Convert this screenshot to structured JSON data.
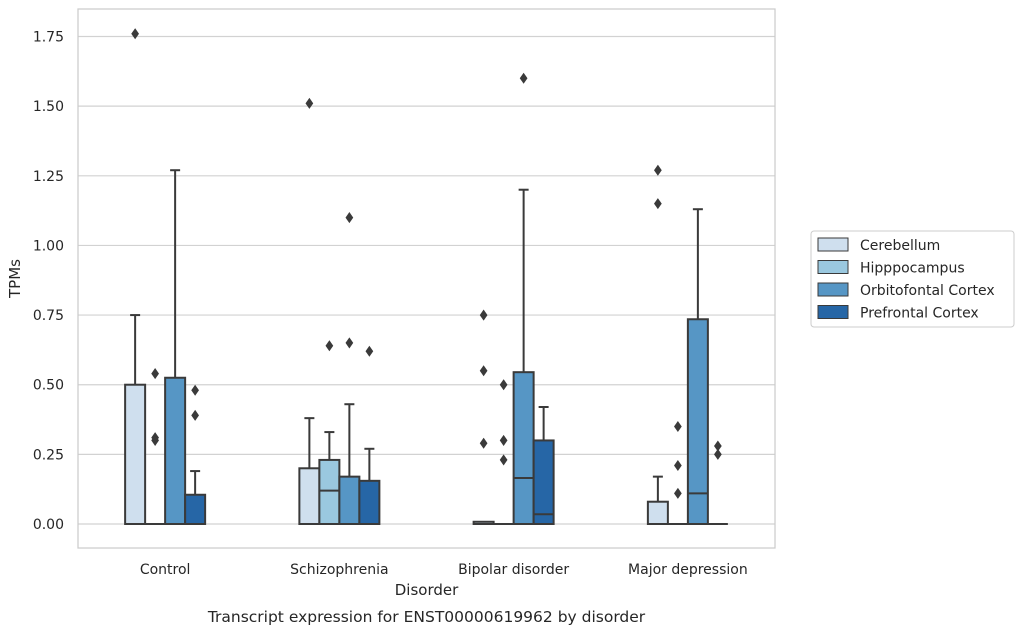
{
  "chart_data": {
    "type": "box",
    "xlabel": "Disorder",
    "ylabel": "TPMs",
    "caption": "Transcript expression for ENST00000619962 by disorder",
    "ylim": [
      -0.085,
      1.85
    ],
    "yticks": [
      "0.00",
      "0.25",
      "0.50",
      "0.75",
      "1.00",
      "1.25",
      "1.50",
      "1.75"
    ],
    "grid": "horizontal",
    "legend_position": "right",
    "categories": [
      "Control",
      "Schizophrenia",
      "Bipolar disorder",
      "Major depression"
    ],
    "series": [
      {
        "name": "Cerebellum",
        "color": "#cfdfee",
        "boxes": [
          {
            "min": 0,
            "q1": 0,
            "median": 0,
            "q3": 0.5,
            "max": 0.75,
            "outliers": [
              1.76
            ]
          },
          {
            "min": 0,
            "q1": 0,
            "median": 0,
            "q3": 0.2,
            "max": 0.38,
            "outliers": [
              1.51
            ]
          },
          {
            "min": 0,
            "q1": 0,
            "median": 0,
            "q3": 0.008,
            "max": 0.008,
            "outliers": [
              0.75,
              0.55,
              0.29
            ]
          },
          {
            "min": 0,
            "q1": 0,
            "median": 0,
            "q3": 0.08,
            "max": 0.17,
            "outliers": [
              1.27,
              1.15
            ]
          }
        ]
      },
      {
        "name": "Hipppocampus",
        "color": "#9ac8df",
        "boxes": [
          {
            "min": 0,
            "q1": 0,
            "median": 0,
            "q3": 0,
            "max": 0,
            "outliers": [
              0.54,
              0.31,
              0.3
            ]
          },
          {
            "min": 0,
            "q1": 0,
            "median": 0.12,
            "q3": 0.23,
            "max": 0.33,
            "outliers": [
              0.64
            ]
          },
          {
            "min": 0,
            "q1": 0,
            "median": 0,
            "q3": 0,
            "max": 0,
            "outliers": [
              0.5,
              0.3,
              0.23
            ]
          },
          {
            "min": 0,
            "q1": 0,
            "median": 0,
            "q3": 0,
            "max": 0,
            "outliers": [
              0.35,
              0.21,
              0.11
            ]
          }
        ]
      },
      {
        "name": "Orbitofontal Cortex",
        "color": "#5696c5",
        "boxes": [
          {
            "min": 0,
            "q1": 0,
            "median": 0,
            "q3": 0.525,
            "max": 1.27,
            "outliers": []
          },
          {
            "min": 0,
            "q1": 0,
            "median": 0,
            "q3": 0.17,
            "max": 0.43,
            "outliers": [
              1.1,
              0.65
            ]
          },
          {
            "min": 0,
            "q1": 0,
            "median": 0.165,
            "q3": 0.545,
            "max": 1.2,
            "outliers": [
              1.6
            ]
          },
          {
            "min": 0,
            "q1": 0,
            "median": 0.11,
            "q3": 0.735,
            "max": 1.13,
            "outliers": []
          }
        ]
      },
      {
        "name": "Prefrontal Cortex",
        "color": "#2666a6",
        "boxes": [
          {
            "min": 0,
            "q1": 0,
            "median": 0,
            "q3": 0.105,
            "max": 0.19,
            "outliers": [
              0.48,
              0.39
            ]
          },
          {
            "min": 0,
            "q1": 0,
            "median": 0,
            "q3": 0.155,
            "max": 0.27,
            "outliers": [
              0.62
            ]
          },
          {
            "min": 0,
            "q1": 0,
            "median": 0.035,
            "q3": 0.3,
            "max": 0.42,
            "outliers": []
          },
          {
            "min": 0,
            "q1": 0,
            "median": 0,
            "q3": 0,
            "max": 0,
            "outliers": [
              0.28,
              0.25
            ]
          }
        ]
      }
    ]
  }
}
